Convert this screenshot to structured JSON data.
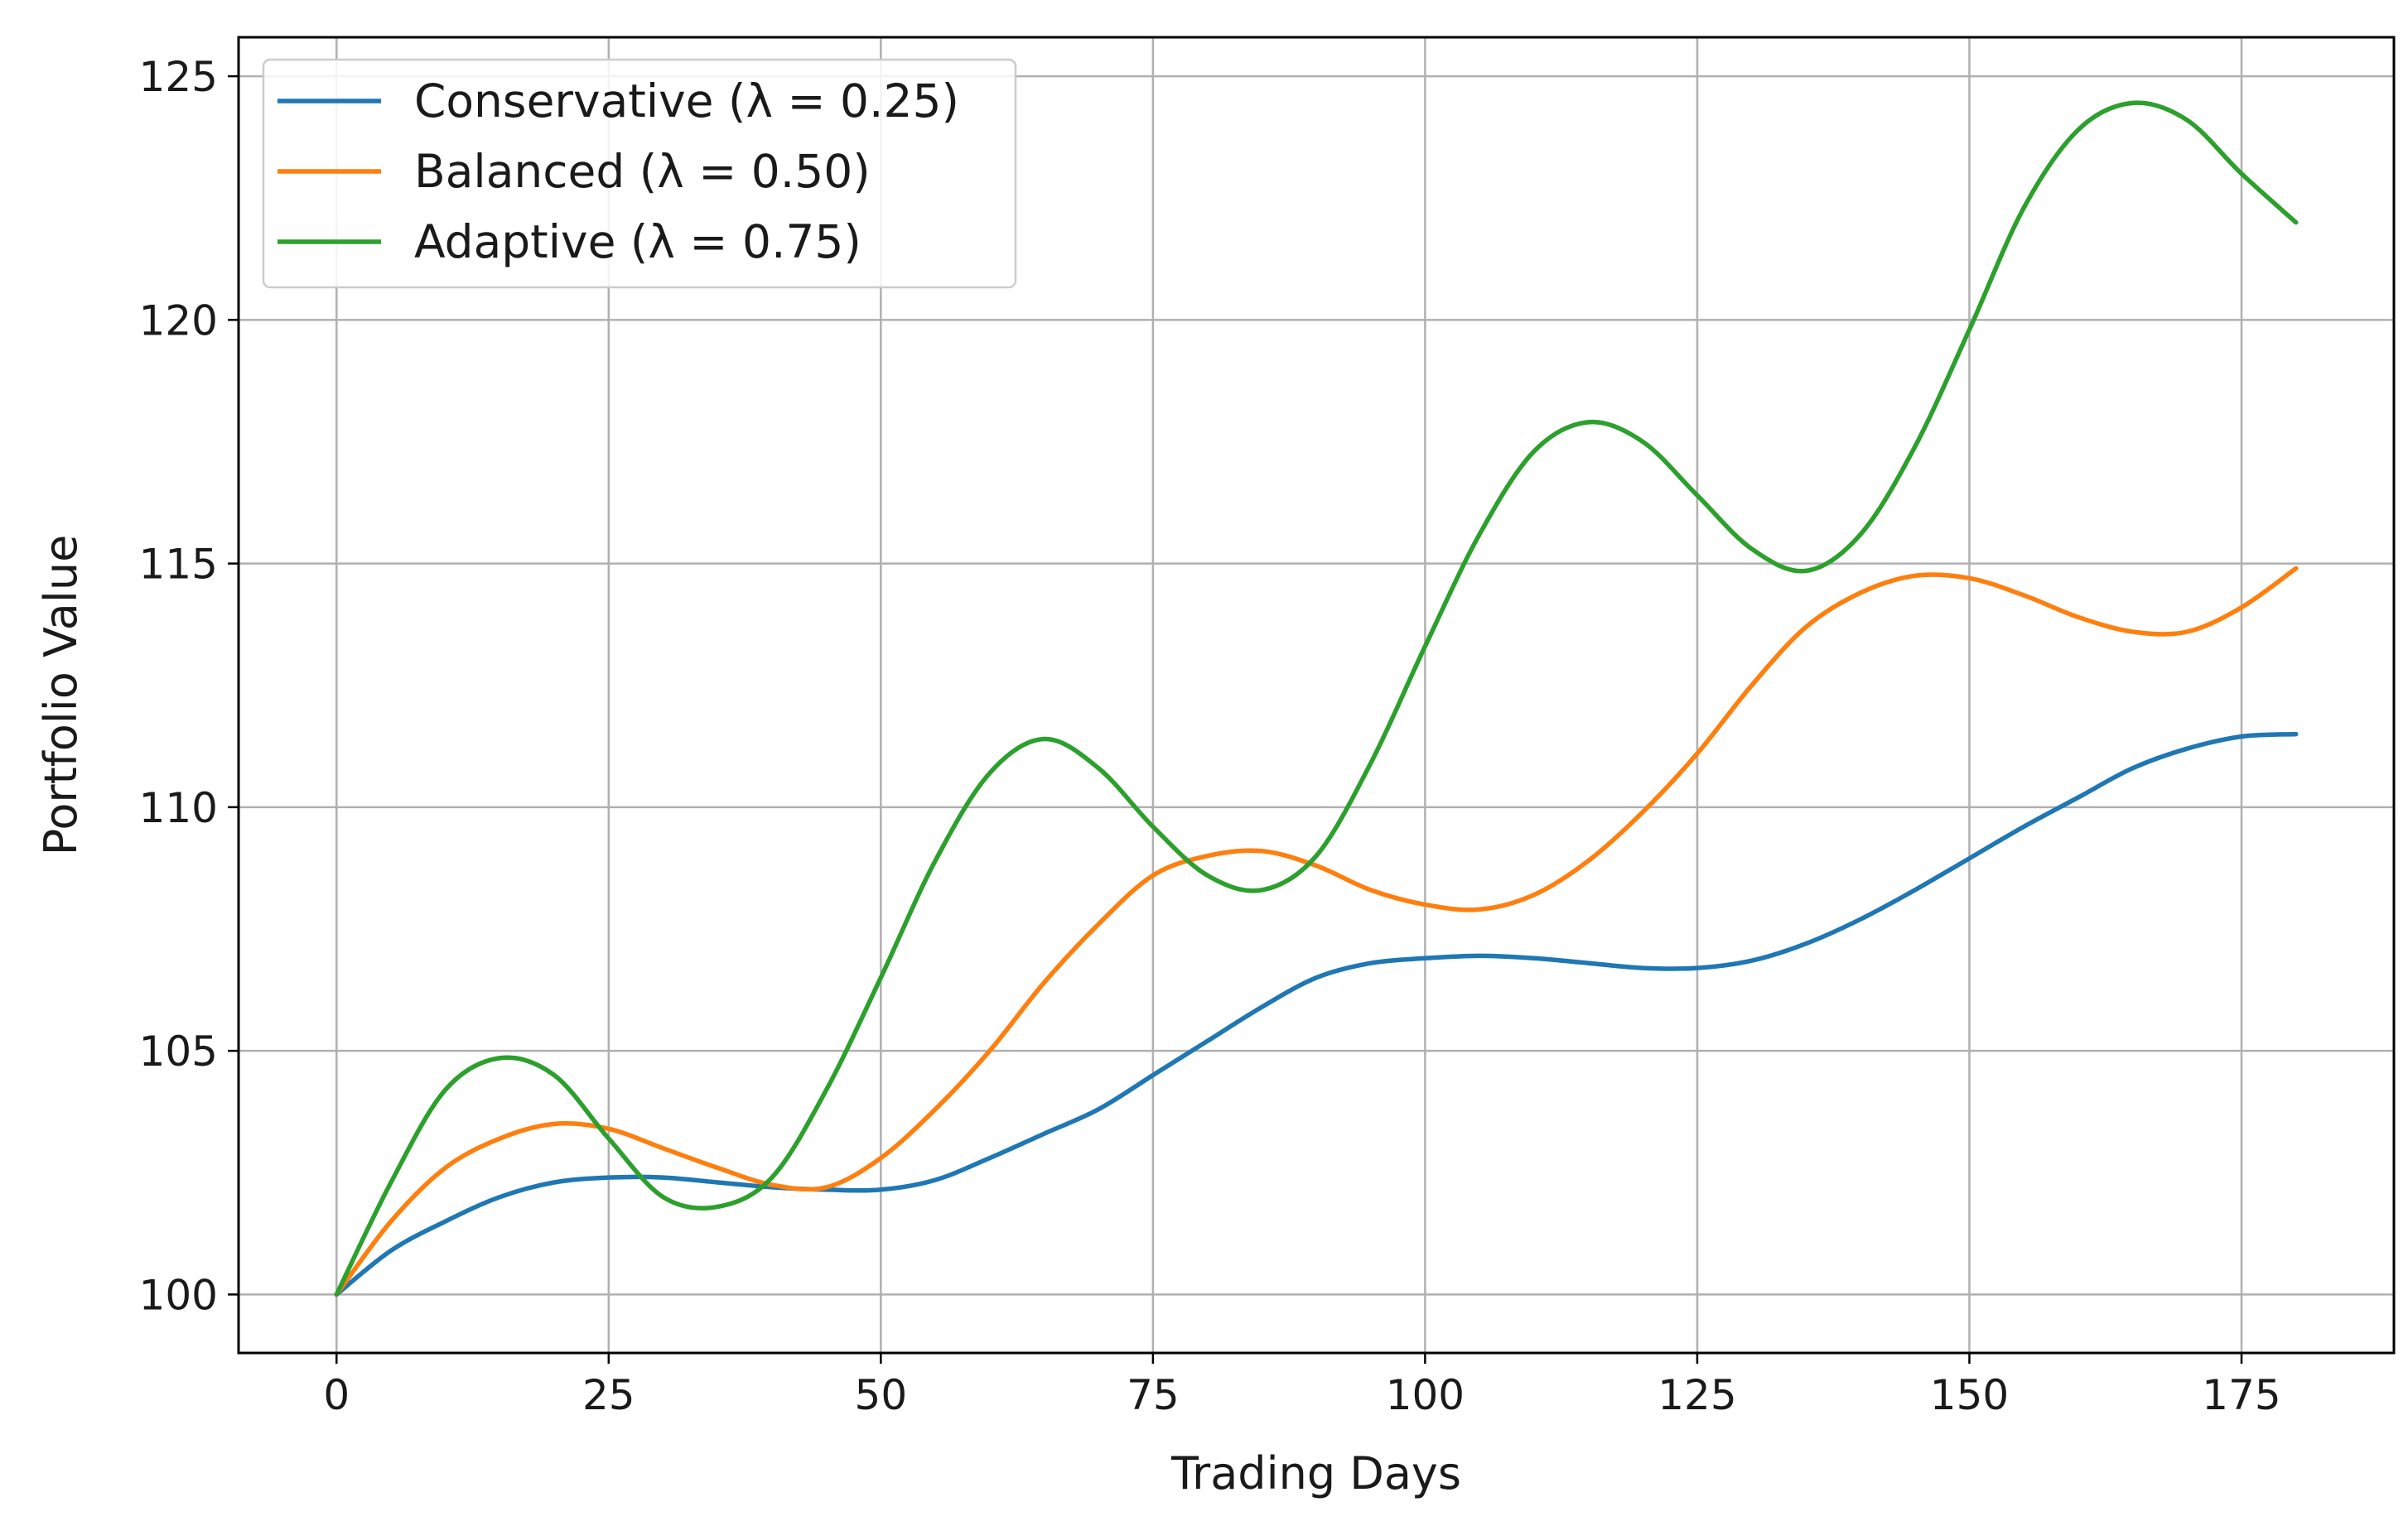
{
  "chart_data": {
    "type": "line",
    "title": "",
    "xlabel": "Trading Days",
    "ylabel": "Portfolio Value",
    "xlim": [
      -9,
      189
    ],
    "ylim": [
      98.8,
      125.8
    ],
    "xticks": [
      0,
      25,
      50,
      75,
      100,
      125,
      150,
      175
    ],
    "yticks": [
      100,
      105,
      110,
      115,
      120,
      125
    ],
    "grid": true,
    "legend_position": "top-left",
    "x": [
      0,
      5,
      10,
      15,
      20,
      25,
      30,
      35,
      40,
      45,
      50,
      55,
      60,
      65,
      70,
      75,
      80,
      85,
      90,
      95,
      100,
      105,
      110,
      115,
      120,
      125,
      130,
      135,
      140,
      145,
      150,
      155,
      160,
      165,
      170,
      175,
      180
    ],
    "series": [
      {
        "name": "Conservative (λ = 0.25)",
        "color": "#1f77b4",
        "values": [
          100.0,
          100.9,
          101.5,
          102.0,
          102.3,
          102.4,
          102.4,
          102.3,
          102.2,
          102.15,
          102.15,
          102.35,
          102.8,
          103.3,
          103.8,
          104.5,
          105.2,
          105.9,
          106.5,
          106.8,
          106.9,
          106.95,
          106.9,
          106.8,
          106.7,
          106.7,
          106.85,
          107.2,
          107.7,
          108.3,
          108.95,
          109.6,
          110.2,
          110.8,
          111.2,
          111.45,
          111.5
        ]
      },
      {
        "name": "Balanced (λ = 0.50)",
        "color": "#ff7f0e",
        "values": [
          100.0,
          101.5,
          102.6,
          103.2,
          103.5,
          103.4,
          103.0,
          102.6,
          102.25,
          102.2,
          102.8,
          103.8,
          105.0,
          106.4,
          107.6,
          108.6,
          109.0,
          109.1,
          108.8,
          108.3,
          108.0,
          107.9,
          108.2,
          108.9,
          109.9,
          111.1,
          112.5,
          113.7,
          114.4,
          114.75,
          114.7,
          114.35,
          113.9,
          113.6,
          113.6,
          114.1,
          114.9
        ]
      },
      {
        "name": "Adaptive (λ = 0.75)",
        "color": "#2ca02c",
        "values": [
          100.0,
          102.3,
          104.2,
          104.85,
          104.5,
          103.2,
          102.0,
          101.8,
          102.4,
          104.2,
          106.5,
          108.9,
          110.7,
          111.4,
          110.8,
          109.6,
          108.6,
          108.3,
          109.0,
          110.9,
          113.3,
          115.6,
          117.3,
          117.9,
          117.5,
          116.4,
          115.3,
          114.85,
          115.6,
          117.4,
          119.8,
          122.3,
          123.9,
          124.45,
          124.1,
          123.0,
          122.0
        ]
      }
    ]
  }
}
